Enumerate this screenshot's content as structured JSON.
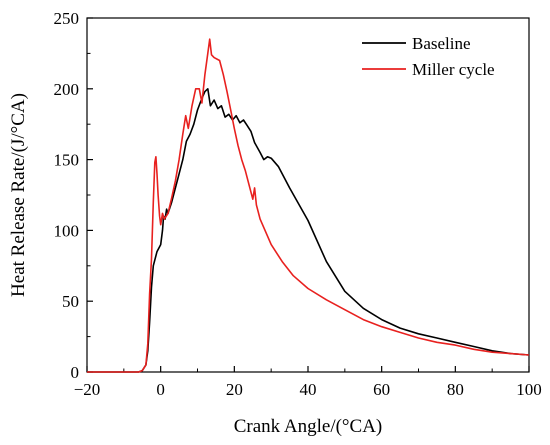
{
  "chart_data": {
    "type": "line",
    "title": "",
    "xlabel": "Crank Angle/(°CA)",
    "ylabel": "Heat Release Rate/(J/°CA)",
    "xlim": [
      -20,
      100
    ],
    "ylim": [
      0,
      250
    ],
    "xticks": [
      -20,
      0,
      20,
      40,
      60,
      80,
      100
    ],
    "yticks": [
      0,
      50,
      100,
      150,
      200,
      250
    ],
    "grid": false,
    "legend_position": "top-right",
    "series": [
      {
        "name": "Baseline",
        "color": "#000000",
        "points": [
          [
            -20,
            0
          ],
          [
            -6,
            0
          ],
          [
            -5,
            1
          ],
          [
            -4,
            5
          ],
          [
            -3.5,
            15
          ],
          [
            -3,
            35
          ],
          [
            -2.5,
            60
          ],
          [
            -2,
            75
          ],
          [
            -1,
            85
          ],
          [
            0,
            90
          ],
          [
            0.5,
            100
          ],
          [
            0.8,
            110
          ],
          [
            1.2,
            108
          ],
          [
            1.6,
            115
          ],
          [
            2,
            112
          ],
          [
            3,
            120
          ],
          [
            4,
            130
          ],
          [
            5,
            140
          ],
          [
            6,
            150
          ],
          [
            7,
            163
          ],
          [
            8,
            168
          ],
          [
            9,
            175
          ],
          [
            10,
            185
          ],
          [
            11,
            192
          ],
          [
            12,
            198
          ],
          [
            12.8,
            200
          ],
          [
            13.5,
            188
          ],
          [
            14.5,
            192
          ],
          [
            15.5,
            186
          ],
          [
            16.5,
            188
          ],
          [
            17.5,
            180
          ],
          [
            18.5,
            182
          ],
          [
            19.5,
            178
          ],
          [
            20.5,
            181
          ],
          [
            21.5,
            176
          ],
          [
            22.5,
            178
          ],
          [
            23.5,
            174
          ],
          [
            24.5,
            170
          ],
          [
            25.5,
            162
          ],
          [
            27,
            155
          ],
          [
            28,
            150
          ],
          [
            29,
            152
          ],
          [
            30,
            151
          ],
          [
            32,
            145
          ],
          [
            35,
            130
          ],
          [
            40,
            107
          ],
          [
            45,
            78
          ],
          [
            50,
            57
          ],
          [
            55,
            45
          ],
          [
            60,
            37
          ],
          [
            65,
            31
          ],
          [
            70,
            27
          ],
          [
            75,
            24
          ],
          [
            80,
            21
          ],
          [
            85,
            18
          ],
          [
            90,
            15
          ],
          [
            95,
            13
          ],
          [
            100,
            12
          ]
        ]
      },
      {
        "name": "Miller cycle",
        "color": "#e8211f",
        "points": [
          [
            -20,
            0
          ],
          [
            -6,
            0
          ],
          [
            -5,
            1
          ],
          [
            -4,
            5
          ],
          [
            -3.5,
            20
          ],
          [
            -3,
            55
          ],
          [
            -2.5,
            80
          ],
          [
            -2,
            120
          ],
          [
            -1.6,
            148
          ],
          [
            -1.3,
            152
          ],
          [
            -1,
            140
          ],
          [
            -0.7,
            125
          ],
          [
            -0.3,
            110
          ],
          [
            0,
            104
          ],
          [
            0.5,
            112
          ],
          [
            1,
            108
          ],
          [
            2,
            112
          ],
          [
            3,
            123
          ],
          [
            4,
            135
          ],
          [
            5,
            150
          ],
          [
            6,
            168
          ],
          [
            6.8,
            181
          ],
          [
            7.5,
            172
          ],
          [
            8.5,
            188
          ],
          [
            9.5,
            200
          ],
          [
            10.5,
            200
          ],
          [
            11.2,
            190
          ],
          [
            12,
            210
          ],
          [
            12.8,
            225
          ],
          [
            13.3,
            235
          ],
          [
            13.8,
            224
          ],
          [
            14.5,
            222
          ],
          [
            16,
            220
          ],
          [
            17,
            210
          ],
          [
            18,
            198
          ],
          [
            19,
            185
          ],
          [
            20,
            172
          ],
          [
            21,
            160
          ],
          [
            22,
            150
          ],
          [
            23,
            142
          ],
          [
            24,
            132
          ],
          [
            25,
            122
          ],
          [
            25.5,
            130
          ],
          [
            26,
            118
          ],
          [
            27,
            108
          ],
          [
            30,
            90
          ],
          [
            33,
            78
          ],
          [
            36,
            68
          ],
          [
            40,
            59
          ],
          [
            45,
            51
          ],
          [
            50,
            44
          ],
          [
            55,
            37
          ],
          [
            60,
            32
          ],
          [
            65,
            28
          ],
          [
            70,
            24
          ],
          [
            75,
            21
          ],
          [
            80,
            19
          ],
          [
            85,
            16
          ],
          [
            90,
            14
          ],
          [
            95,
            13
          ],
          [
            100,
            12
          ]
        ]
      }
    ]
  }
}
